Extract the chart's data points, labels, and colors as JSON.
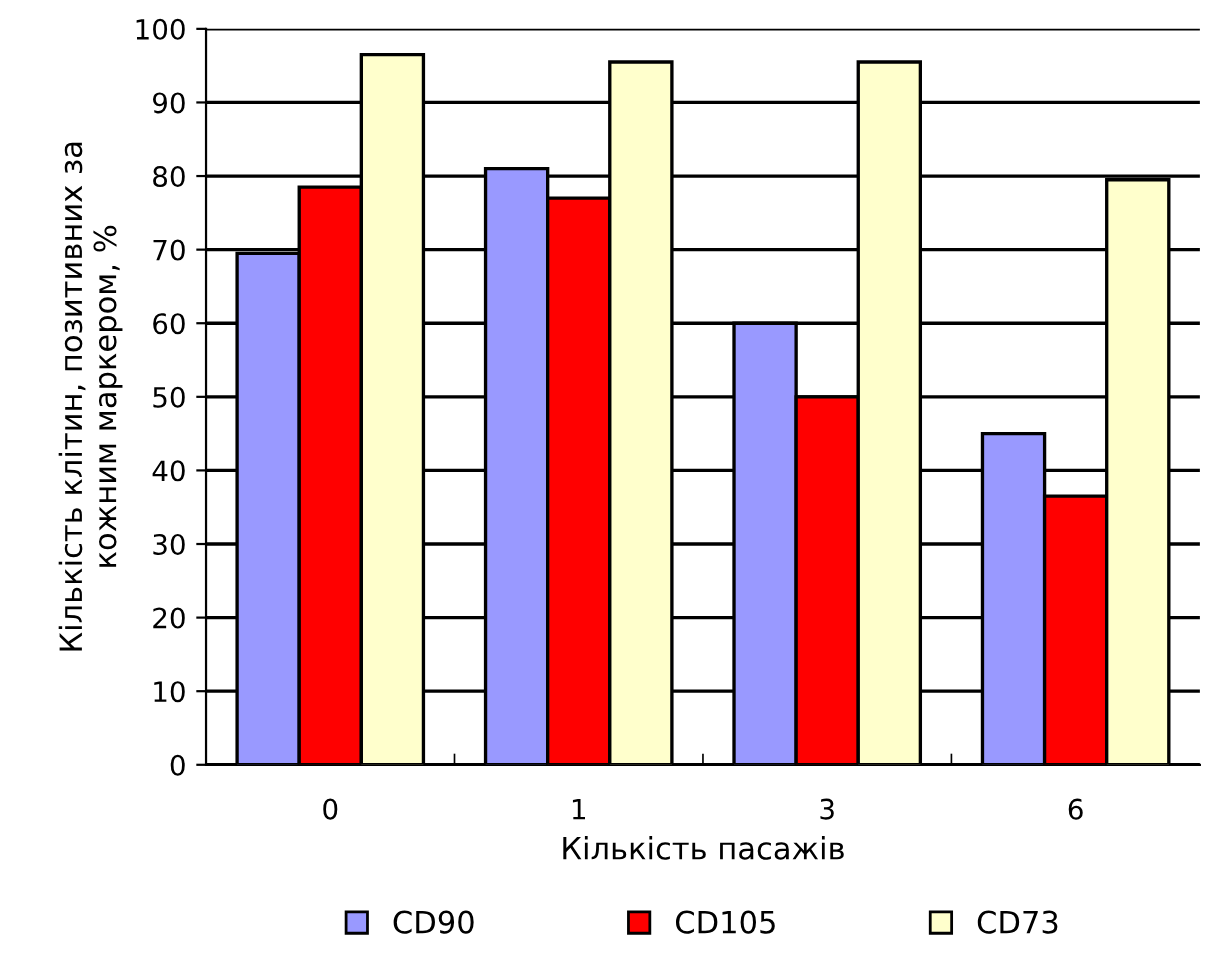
{
  "chart_data": {
    "type": "bar",
    "xlabel": "Кількість пасажів",
    "ylabel": "Кількість клітин, позитивних за\nкожним маркером, %",
    "categories": [
      "0",
      "1",
      "3",
      "6"
    ],
    "series": [
      {
        "name": "CD90",
        "color": "#9999ff",
        "values": [
          69.5,
          81,
          60,
          45
        ]
      },
      {
        "name": "CD105",
        "color": "#ff0000",
        "values": [
          78.5,
          77,
          50,
          36.5
        ]
      },
      {
        "name": "CD73",
        "color": "#ffffcc",
        "values": [
          96.5,
          95.5,
          95.5,
          79.5
        ]
      }
    ],
    "ylim": [
      0,
      100
    ],
    "yticks": [
      0,
      10,
      20,
      30,
      40,
      50,
      60,
      70,
      80,
      90,
      100
    ],
    "grid": "y",
    "legend": "bottom"
  }
}
